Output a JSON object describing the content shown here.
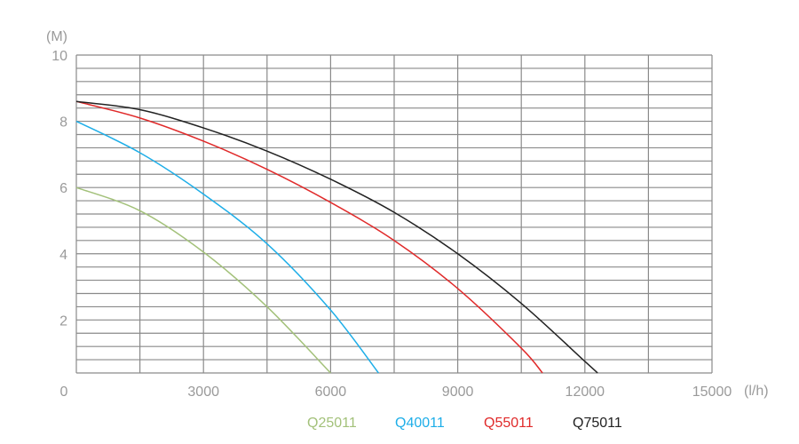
{
  "chart_data": {
    "type": "line",
    "title": "",
    "xlabel": "(l/h)",
    "ylabel": "(M)",
    "xlim": [
      0,
      15000
    ],
    "ylim": [
      0.4,
      10
    ],
    "x_grid_step": 1500,
    "y_grid_step": 0.4,
    "grid": true,
    "legend_placement": "bottom",
    "x_ticks": [
      0,
      3000,
      6000,
      9000,
      12000,
      15000
    ],
    "x_tick_labels": [
      "0",
      "3000",
      "6000",
      "9000",
      "12000",
      "15000"
    ],
    "y_ticks": [
      2,
      4,
      6,
      8,
      10
    ],
    "y_tick_labels": [
      "2",
      "4",
      "6",
      "8",
      "10"
    ],
    "series": [
      {
        "name": "Q25011",
        "color": "#a3c17a",
        "points": [
          [
            0,
            6.0
          ],
          [
            1500,
            5.3
          ],
          [
            3000,
            4.05
          ],
          [
            4500,
            2.4
          ],
          [
            6000,
            0.4
          ]
        ]
      },
      {
        "name": "Q40011",
        "color": "#1eaee8",
        "points": [
          [
            0,
            8.0
          ],
          [
            1500,
            7.05
          ],
          [
            3000,
            5.8
          ],
          [
            4500,
            4.3
          ],
          [
            6000,
            2.3
          ],
          [
            7130,
            0.4
          ]
        ]
      },
      {
        "name": "Q55011",
        "color": "#e02a2a",
        "points": [
          [
            0,
            8.6
          ],
          [
            1500,
            8.1
          ],
          [
            3000,
            7.4
          ],
          [
            4500,
            6.55
          ],
          [
            6000,
            5.55
          ],
          [
            7500,
            4.4
          ],
          [
            9000,
            2.95
          ],
          [
            10500,
            1.15
          ],
          [
            11000,
            0.4
          ]
        ]
      },
      {
        "name": "Q75011",
        "color": "#222222",
        "points": [
          [
            0,
            8.6
          ],
          [
            1500,
            8.35
          ],
          [
            3000,
            7.8
          ],
          [
            4500,
            7.1
          ],
          [
            6000,
            6.25
          ],
          [
            7500,
            5.25
          ],
          [
            9000,
            4.0
          ],
          [
            10500,
            2.5
          ],
          [
            12000,
            0.75
          ],
          [
            12300,
            0.4
          ]
        ]
      }
    ]
  }
}
